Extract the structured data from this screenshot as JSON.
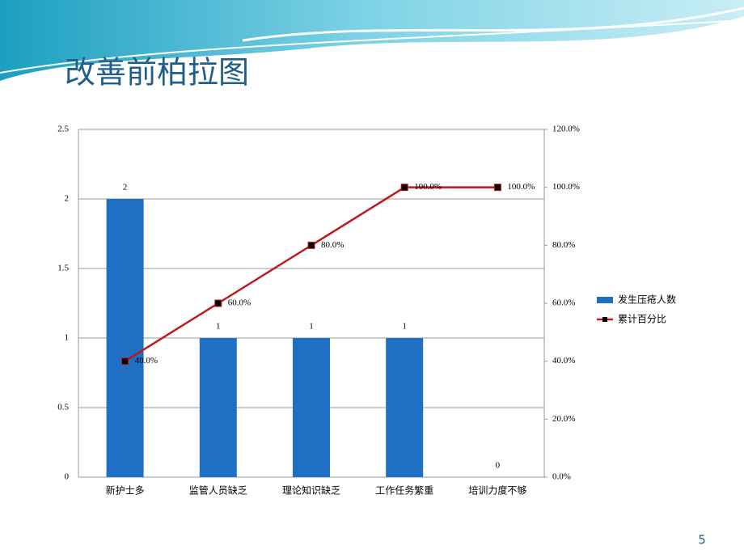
{
  "slide_number": "5",
  "chart_data": {
    "type": "bar-line",
    "title": "改善前柏拉图",
    "categories": [
      "新护士多",
      "监管人员缺乏",
      "理论知识缺乏",
      "工作任务繁重",
      "培训力度不够"
    ],
    "series": [
      {
        "name": "发生压疮人数",
        "color": "#1f6fc5",
        "type": "bar",
        "values": [
          2,
          1,
          1,
          1,
          0
        ]
      },
      {
        "name": "累计百分比",
        "color": "#c0171c",
        "type": "line",
        "axis": "y2",
        "values": [
          40,
          60,
          80,
          100,
          100
        ],
        "value_labels": [
          "40.0%",
          "60.0%",
          "80.0%",
          "100.0%",
          "100.0%"
        ]
      }
    ],
    "ylim": [
      0,
      2.5
    ],
    "yticks": [
      0,
      0.5,
      1,
      1.5,
      2,
      2.5
    ],
    "y2lim": [
      0,
      120
    ],
    "y2ticks": [
      {
        "value": 0,
        "label": "0.0%"
      },
      {
        "value": 20,
        "label": "20.0%"
      },
      {
        "value": 40,
        "label": "40.0%"
      },
      {
        "value": 60,
        "label": "60.0%"
      },
      {
        "value": 80,
        "label": "80.0%"
      },
      {
        "value": 100,
        "label": "100.0%"
      },
      {
        "value": 120,
        "label": "120.0%"
      }
    ],
    "grid": true,
    "legend": "right"
  }
}
